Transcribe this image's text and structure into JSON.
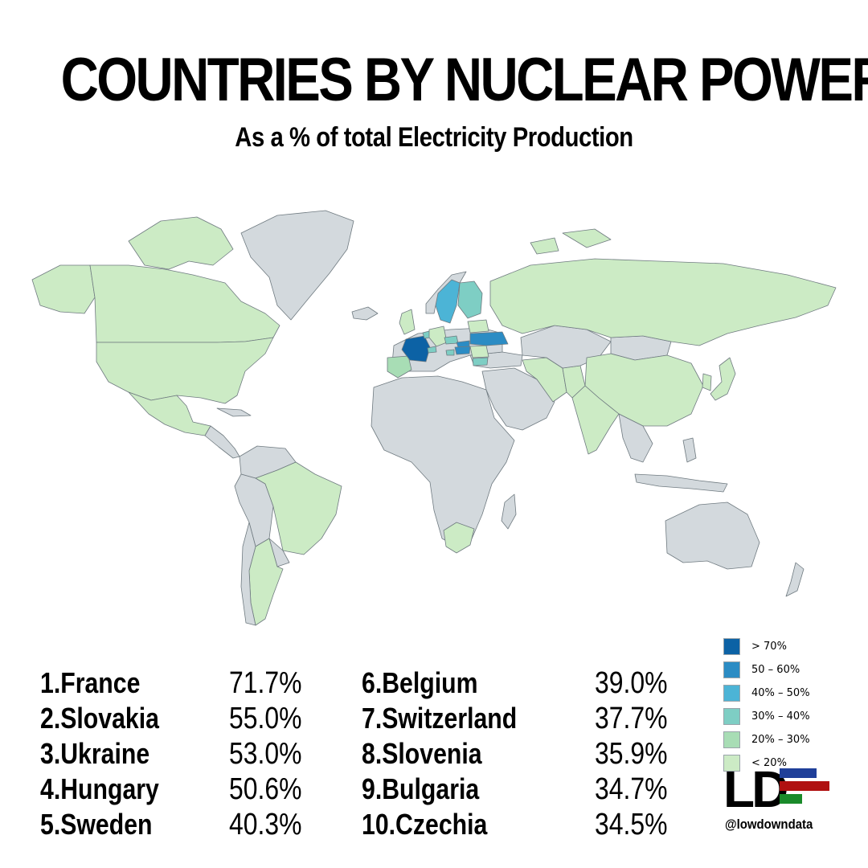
{
  "header": {
    "title": "COUNTRIES BY NUCLEAR POWER",
    "subtitle": "As a % of total Electricity Production"
  },
  "map": {
    "colors": {
      "no_data": "#d3d9dd",
      "border": "#6f7a80",
      "ocean": "#ffffff"
    },
    "highlighted": [
      {
        "country": "France",
        "bin": "> 70%"
      },
      {
        "country": "Slovakia",
        "bin": "50 – 60%"
      },
      {
        "country": "Ukraine",
        "bin": "50 – 60%"
      },
      {
        "country": "Hungary",
        "bin": "50 – 60%"
      },
      {
        "country": "Sweden",
        "bin": "40% – 50%"
      },
      {
        "country": "Belgium",
        "bin": "30% – 40%"
      },
      {
        "country": "Switzerland",
        "bin": "30% – 40%"
      },
      {
        "country": "Slovenia",
        "bin": "30% – 40%"
      },
      {
        "country": "Bulgaria",
        "bin": "30% – 40%"
      },
      {
        "country": "Czechia",
        "bin": "30% – 40%"
      },
      {
        "country": "Finland",
        "bin": "30% – 40%"
      },
      {
        "country": "Spain",
        "bin": "20% – 30%"
      },
      {
        "country": "Romania",
        "bin": "< 20%"
      },
      {
        "country": "United States",
        "bin": "< 20%"
      },
      {
        "country": "Canada",
        "bin": "< 20%"
      },
      {
        "country": "Russia",
        "bin": "< 20%"
      },
      {
        "country": "China",
        "bin": "< 20%"
      },
      {
        "country": "India",
        "bin": "< 20%"
      },
      {
        "country": "Brazil",
        "bin": "< 20%"
      },
      {
        "country": "Argentina",
        "bin": "< 20%"
      },
      {
        "country": "Mexico",
        "bin": "< 20%"
      },
      {
        "country": "South Africa",
        "bin": "< 20%"
      },
      {
        "country": "Iran",
        "bin": "< 20%"
      },
      {
        "country": "Pakistan",
        "bin": "< 20%"
      },
      {
        "country": "Japan",
        "bin": "< 20%"
      },
      {
        "country": "South Korea",
        "bin": "< 20%"
      },
      {
        "country": "United Kingdom",
        "bin": "< 20%"
      },
      {
        "country": "Germany",
        "bin": "< 20%"
      },
      {
        "country": "Netherlands",
        "bin": "< 20%"
      },
      {
        "country": "Belarus",
        "bin": "< 20%"
      },
      {
        "country": "Armenia",
        "bin": "< 20%"
      }
    ]
  },
  "legend": [
    {
      "label": "> 70%",
      "color": "#0c62a5"
    },
    {
      "label": "50 – 60%",
      "color": "#2b8cc4"
    },
    {
      "label": "40% – 50%",
      "color": "#4cb4d6"
    },
    {
      "label": "30% – 40%",
      "color": "#7ecec4"
    },
    {
      "label": "20% – 30%",
      "color": "#a8ddb5"
    },
    {
      "label": "< 20%",
      "color": "#ccebc5"
    }
  ],
  "rankings": [
    {
      "rank": "1.",
      "country": "France",
      "value": "71.7%"
    },
    {
      "rank": "2.",
      "country": "Slovakia",
      "value": "55.0%"
    },
    {
      "rank": "3.",
      "country": "Ukraine",
      "value": "53.0%"
    },
    {
      "rank": "4.",
      "country": "Hungary",
      "value": "50.6%"
    },
    {
      "rank": "5.",
      "country": "Sweden",
      "value": "40.3%"
    },
    {
      "rank": "6.",
      "country": "Belgium",
      "value": "39.0%"
    },
    {
      "rank": "7.",
      "country": "Switzerland",
      "value": "37.7%"
    },
    {
      "rank": "8.",
      "country": "Slovenia",
      "value": "35.9%"
    },
    {
      "rank": "9.",
      "country": "Bulgaria",
      "value": "34.7%"
    },
    {
      "rank": "10.",
      "country": "Czechia",
      "value": "34.5%"
    }
  ],
  "logo": {
    "text": "LD",
    "handle": "@lowdowndata",
    "bar_colors": [
      "#1f3f99",
      "#b01010",
      "#1a8a2a"
    ]
  }
}
